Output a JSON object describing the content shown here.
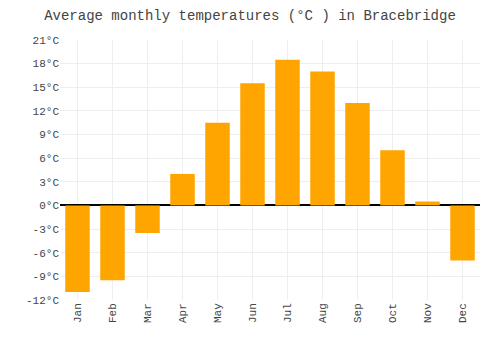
{
  "chart_data": {
    "type": "bar",
    "title": "Average monthly temperatures (°C ) in Bracebridge",
    "categories": [
      "Jan",
      "Feb",
      "Mar",
      "Apr",
      "May",
      "Jun",
      "Jul",
      "Aug",
      "Sep",
      "Oct",
      "Nov",
      "Dec"
    ],
    "values": [
      -11,
      -9.5,
      -3.5,
      4,
      10.5,
      15.5,
      18.5,
      17,
      13,
      7,
      0.5,
      -7
    ],
    "color": "#FFA500",
    "ylim": [
      -12,
      21
    ],
    "yticks": [
      {
        "value": -12,
        "label": "-12°C"
      },
      {
        "value": -9,
        "label": "-9°C"
      },
      {
        "value": -6,
        "label": "-6°C"
      },
      {
        "value": -3,
        "label": "-3°C"
      },
      {
        "value": 0,
        "label": "0°C"
      },
      {
        "value": 3,
        "label": "3°C"
      },
      {
        "value": 6,
        "label": "6°C"
      },
      {
        "value": 9,
        "label": "9°C"
      },
      {
        "value": 12,
        "label": "12°C"
      },
      {
        "value": 15,
        "label": "15°C"
      },
      {
        "value": 18,
        "label": "18°C"
      },
      {
        "value": 21,
        "label": "21°C"
      }
    ],
    "grid": true
  }
}
